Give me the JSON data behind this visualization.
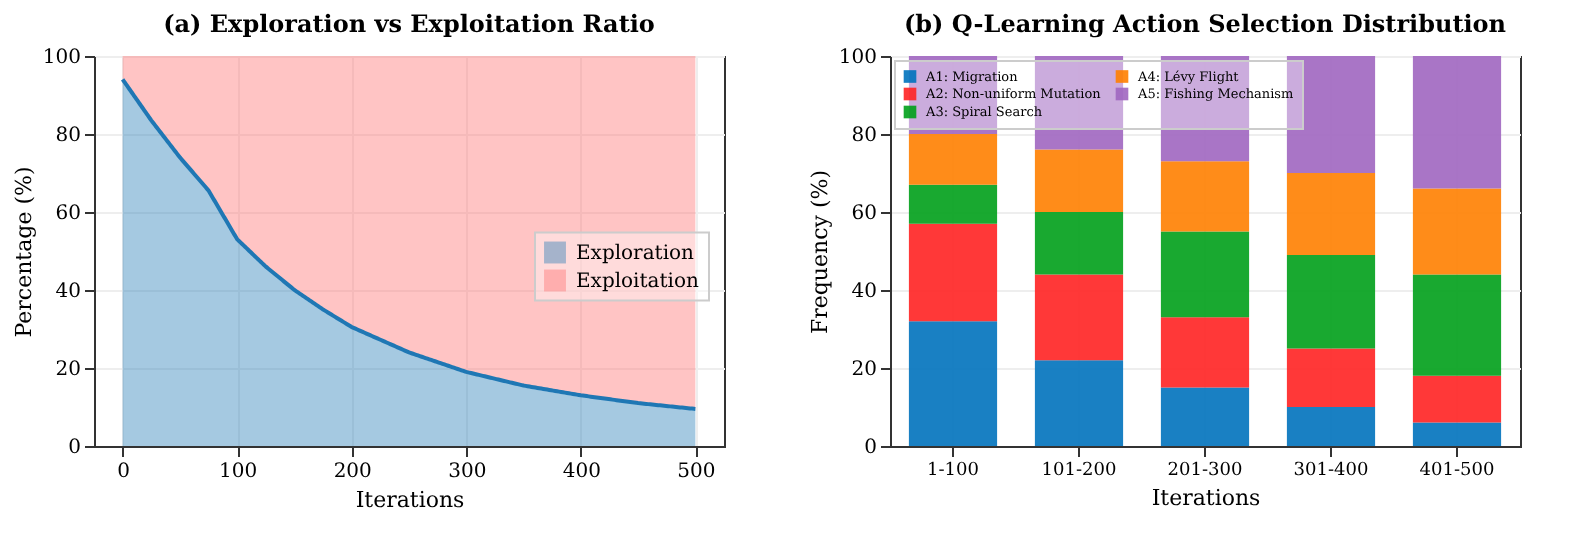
{
  "chart_data": [
    {
      "type": "area",
      "title": "(a) Exploration vs Exploitation Ratio",
      "xlabel": "Iterations",
      "ylabel": "Percentage (%)",
      "stacked": true,
      "x": [
        0,
        25,
        50,
        75,
        100,
        125,
        150,
        175,
        200,
        250,
        300,
        350,
        400,
        450,
        500
      ],
      "series": [
        {
          "name": "Exploration",
          "color": "#1f77b4",
          "line_style": "solid",
          "values": [
            94,
            83.5,
            74,
            65.5,
            53,
            46,
            40,
            35,
            30.5,
            24,
            19,
            15.5,
            13,
            11,
            9.5
          ]
        },
        {
          "name": "Exploitation",
          "color": "#ff6b6b",
          "values": [
            6,
            16.5,
            26,
            34.5,
            47,
            54,
            60,
            65,
            69.5,
            76,
            81,
            84.5,
            87,
            89,
            90.5
          ]
        }
      ],
      "xlim": [
        -25,
        525
      ],
      "xticks": [
        0,
        100,
        200,
        300,
        400,
        500
      ],
      "ylim": [
        0,
        100
      ],
      "yticks": [
        0,
        20,
        40,
        60,
        80,
        100
      ],
      "grid": true,
      "legend": "right"
    },
    {
      "type": "bar",
      "title": "(b) Q-Learning Action Selection Distribution",
      "xlabel": "Iterations",
      "ylabel": "Frequency (%)",
      "stacked": true,
      "categories": [
        "1-100",
        "101-200",
        "201-300",
        "301-400",
        "401-500"
      ],
      "series": [
        {
          "name": "A1: Migration",
          "color": "#0072bd",
          "values": [
            32,
            22,
            15,
            10,
            6
          ]
        },
        {
          "name": "A2: Non-uniform Mutation",
          "color": "#ff2222",
          "values": [
            25,
            22,
            18,
            15,
            12
          ]
        },
        {
          "name": "A3: Spiral Search",
          "color": "#00a01a",
          "values": [
            10,
            16,
            22,
            24,
            26
          ]
        },
        {
          "name": "A4: Lévy Flight",
          "color": "#ff8000",
          "values": [
            13,
            16,
            18,
            21,
            22
          ]
        },
        {
          "name": "A5: Fishing Mechanism",
          "color": "#a066c0",
          "values": [
            20,
            24,
            27,
            30,
            34
          ]
        }
      ],
      "ylim": [
        0,
        100
      ],
      "yticks": [
        0,
        20,
        40,
        60,
        80,
        100
      ],
      "grid": true,
      "legend": "top left"
    }
  ]
}
